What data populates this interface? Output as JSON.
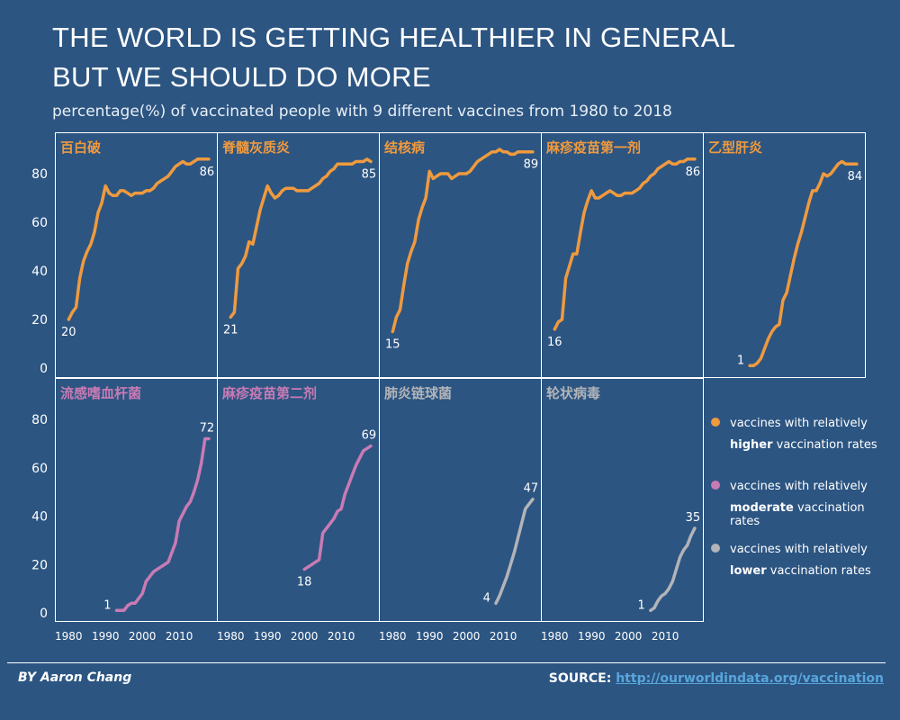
{
  "title_line1": "THE WORLD IS GETTING HEALTHIER IN GENERAL",
  "title_line2": "BUT WE SHOULD DO MORE",
  "subtitle": "percentage(%) of vaccinated people with  9 different vaccines from 1980 to 2018",
  "author": "BY Aaron Chang",
  "source_label": "SOURCE:",
  "source_link": "http://ourworldindata.org/vaccination",
  "colors": {
    "background": "#2c5582",
    "higher": "#ef9a3e",
    "moderate": "#c97bb4",
    "lower": "#b2b4b8",
    "grid": "#ffffff"
  },
  "legend": [
    {
      "key": "higher",
      "line1": "vaccines with relatively",
      "bold": "higher",
      "rest": " vaccination rates"
    },
    {
      "key": "moderate",
      "line1": "vaccines with relatively",
      "bold": "moderate",
      "rest": " vaccination rates"
    },
    {
      "key": "lower",
      "line1": "vaccines with relatively",
      "bold": "lower",
      "rest": " vaccination rates"
    }
  ],
  "chart_data": {
    "type": "line",
    "layout": "small-multiples",
    "xlim": [
      1977,
      2019
    ],
    "ylim": [
      0,
      92
    ],
    "x_ticks": [
      1980,
      1990,
      2000,
      2010
    ],
    "x_tick_labels": [
      "1980",
      "1990",
      "2000",
      "2010"
    ],
    "y_ticks": [
      0,
      20,
      40,
      60,
      80
    ],
    "y_tick_labels": [
      "0",
      "20",
      "40",
      "60",
      "80"
    ],
    "panels": [
      {
        "name": "百白破",
        "group": "higher",
        "start_label": "20",
        "end_label": "86",
        "x": [
          1980,
          1981,
          1982,
          1983,
          1984,
          1985,
          1986,
          1987,
          1988,
          1989,
          1990,
          1991,
          1992,
          1993,
          1994,
          1995,
          1996,
          1997,
          1998,
          1999,
          2000,
          2001,
          2002,
          2003,
          2004,
          2005,
          2006,
          2007,
          2008,
          2009,
          2010,
          2011,
          2012,
          2013,
          2014,
          2015,
          2016,
          2017,
          2018
        ],
        "y": [
          20,
          23,
          25,
          37,
          44,
          48,
          51,
          56,
          64,
          68,
          75,
          72,
          71,
          71,
          73,
          73,
          72,
          71,
          72,
          72,
          72,
          73,
          73,
          74,
          76,
          77,
          78,
          79,
          81,
          83,
          84,
          85,
          84,
          84,
          85,
          86,
          86,
          86,
          86
        ]
      },
      {
        "name": "脊髓灰质炎",
        "group": "higher",
        "start_label": "21",
        "end_label": "85",
        "x": [
          1980,
          1981,
          1982,
          1983,
          1984,
          1985,
          1986,
          1987,
          1988,
          1989,
          1990,
          1991,
          1992,
          1993,
          1994,
          1995,
          1996,
          1997,
          1998,
          1999,
          2000,
          2001,
          2002,
          2003,
          2004,
          2005,
          2006,
          2007,
          2008,
          2009,
          2010,
          2011,
          2012,
          2013,
          2014,
          2015,
          2016,
          2017,
          2018
        ],
        "y": [
          21,
          23,
          41,
          43,
          46,
          52,
          51,
          58,
          65,
          70,
          75,
          72,
          70,
          71,
          73,
          74,
          74,
          74,
          73,
          73,
          73,
          73,
          74,
          75,
          76,
          78,
          79,
          81,
          82,
          84,
          84,
          84,
          84,
          84,
          85,
          85,
          85,
          86,
          85
        ]
      },
      {
        "name": "结核病",
        "group": "higher",
        "start_label": "15",
        "end_label": "89",
        "x": [
          1980,
          1981,
          1982,
          1983,
          1984,
          1985,
          1986,
          1987,
          1988,
          1989,
          1990,
          1991,
          1992,
          1993,
          1994,
          1995,
          1996,
          1997,
          1998,
          1999,
          2000,
          2001,
          2002,
          2003,
          2004,
          2005,
          2006,
          2007,
          2008,
          2009,
          2010,
          2011,
          2012,
          2013,
          2014,
          2015,
          2016,
          2017,
          2018
        ],
        "y": [
          15,
          21,
          24,
          34,
          43,
          48,
          52,
          61,
          66,
          70,
          81,
          78,
          79,
          80,
          80,
          80,
          78,
          79,
          80,
          80,
          80,
          81,
          83,
          85,
          86,
          87,
          88,
          89,
          89,
          90,
          89,
          89,
          88,
          88,
          89,
          89,
          89,
          89,
          89
        ]
      },
      {
        "name": "麻疹疫苗第一剂",
        "group": "higher",
        "start_label": "16",
        "end_label": "86",
        "x": [
          1980,
          1981,
          1982,
          1983,
          1984,
          1985,
          1986,
          1987,
          1988,
          1989,
          1990,
          1991,
          1992,
          1993,
          1994,
          1995,
          1996,
          1997,
          1998,
          1999,
          2000,
          2001,
          2002,
          2003,
          2004,
          2005,
          2006,
          2007,
          2008,
          2009,
          2010,
          2011,
          2012,
          2013,
          2014,
          2015,
          2016,
          2017,
          2018
        ],
        "y": [
          16,
          19,
          20,
          37,
          42,
          47,
          47,
          56,
          64,
          69,
          73,
          70,
          70,
          71,
          72,
          73,
          72,
          71,
          71,
          72,
          72,
          72,
          73,
          74,
          76,
          77,
          79,
          80,
          82,
          83,
          84,
          85,
          84,
          84,
          85,
          85,
          86,
          86,
          86
        ]
      },
      {
        "name": "乙型肝炎",
        "group": "higher",
        "start_label": "1",
        "end_label": "84",
        "x": [
          1989,
          1990,
          1991,
          1992,
          1993,
          1994,
          1995,
          1996,
          1997,
          1998,
          1999,
          2000,
          2001,
          2002,
          2003,
          2004,
          2005,
          2006,
          2007,
          2008,
          2009,
          2010,
          2011,
          2012,
          2013,
          2014,
          2015,
          2016,
          2017,
          2018
        ],
        "y": [
          1,
          1,
          2,
          4,
          8,
          12,
          15,
          17,
          18,
          28,
          31,
          38,
          45,
          51,
          56,
          62,
          68,
          73,
          73,
          76,
          80,
          79,
          80,
          82,
          84,
          85,
          84,
          84,
          84,
          84
        ]
      },
      {
        "name": "流感嗜血杆菌",
        "group": "moderate",
        "start_label": "1",
        "end_label": "72",
        "x": [
          1993,
          1994,
          1995,
          1996,
          1997,
          1998,
          1999,
          2000,
          2001,
          2002,
          2003,
          2004,
          2005,
          2006,
          2007,
          2008,
          2009,
          2010,
          2011,
          2012,
          2013,
          2014,
          2015,
          2016,
          2017,
          2018
        ],
        "y": [
          1,
          1,
          1,
          3,
          4,
          4,
          6,
          8,
          13,
          15,
          17,
          18,
          19,
          20,
          21,
          25,
          29,
          38,
          41,
          44,
          46,
          50,
          55,
          62,
          72,
          72
        ]
      },
      {
        "name": "麻疹疫苗第二剂",
        "group": "moderate",
        "start_label": "18",
        "end_label": "69",
        "x": [
          2000,
          2001,
          2002,
          2003,
          2004,
          2005,
          2006,
          2007,
          2008,
          2009,
          2010,
          2011,
          2012,
          2013,
          2014,
          2015,
          2016,
          2017,
          2018
        ],
        "y": [
          18,
          19,
          20,
          21,
          22,
          33,
          35,
          37,
          39,
          42,
          43,
          49,
          53,
          57,
          61,
          64,
          67,
          68,
          69
        ]
      },
      {
        "name": "肺炎链球菌",
        "group": "lower",
        "start_label": "4",
        "end_label": "47",
        "x": [
          2008,
          2009,
          2010,
          2011,
          2012,
          2013,
          2014,
          2015,
          2016,
          2017,
          2018
        ],
        "y": [
          4,
          7,
          11,
          15,
          20,
          25,
          31,
          37,
          43,
          45,
          47
        ]
      },
      {
        "name": "轮状病毒",
        "group": "lower",
        "start_label": "1",
        "end_label": "35",
        "x": [
          2006,
          2007,
          2008,
          2009,
          2010,
          2011,
          2012,
          2013,
          2014,
          2015,
          2016,
          2017,
          2018
        ],
        "y": [
          1,
          2,
          5,
          7,
          8,
          10,
          13,
          18,
          23,
          26,
          28,
          32,
          35
        ]
      }
    ]
  }
}
